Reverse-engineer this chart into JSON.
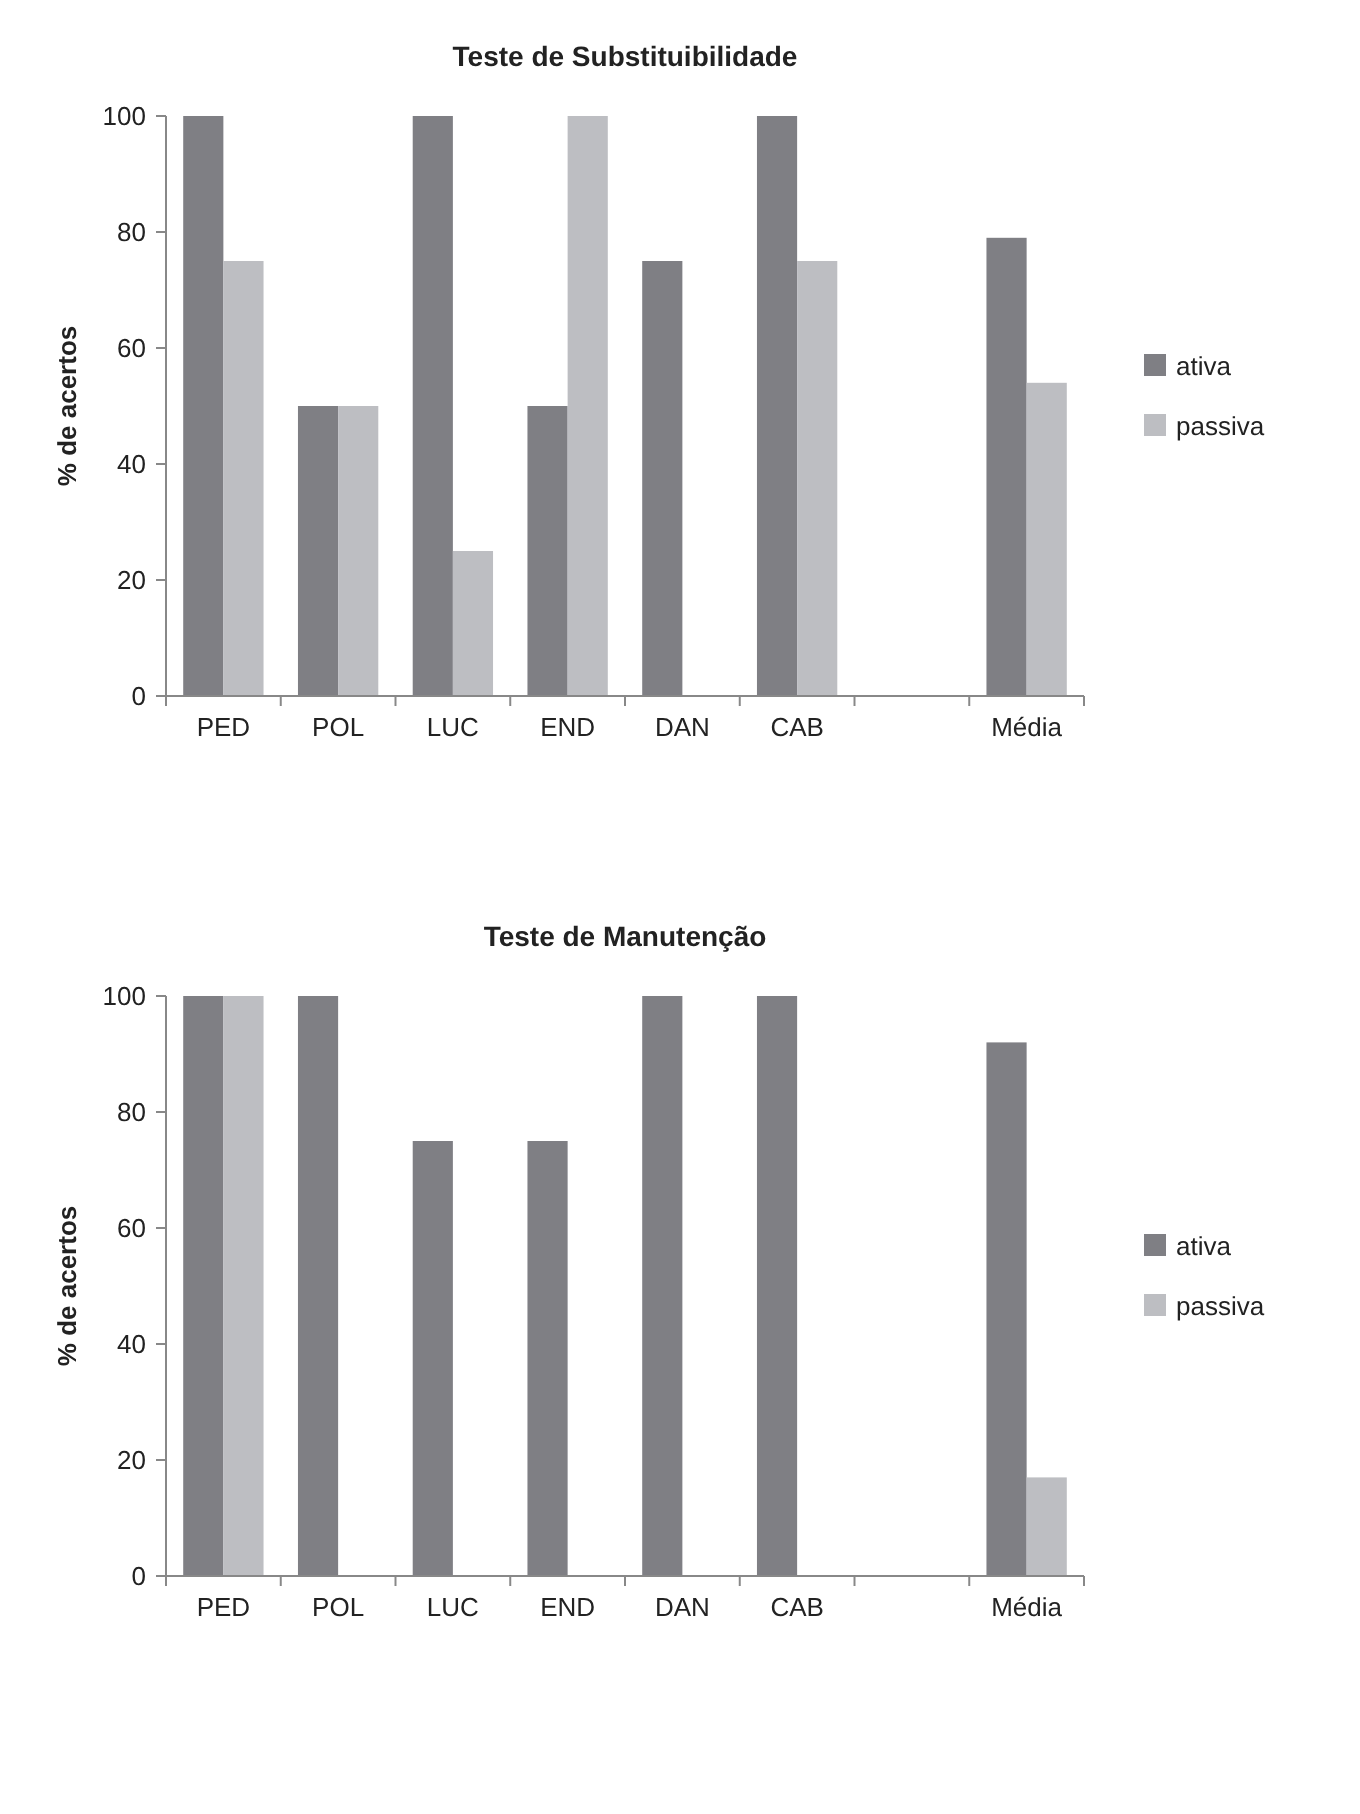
{
  "chart_data": [
    {
      "type": "bar",
      "title": "Teste de Substituibilidade",
      "ylabel": "% de acertos",
      "categories": [
        "PED",
        "POL",
        "LUC",
        "END",
        "DAN",
        "CAB",
        null,
        "Média"
      ],
      "series": [
        {
          "name": "ativa",
          "color": "#7f7f84",
          "values": [
            100,
            50,
            100,
            50,
            75,
            100,
            null,
            79
          ]
        },
        {
          "name": "passiva",
          "color": "#bdbec2",
          "values": [
            75,
            50,
            25,
            100,
            0,
            75,
            null,
            54
          ]
        }
      ],
      "ylim": [
        0,
        100
      ],
      "yticks": [
        0,
        20,
        40,
        60,
        80,
        100
      ],
      "grid": false,
      "legend": "right"
    },
    {
      "type": "bar",
      "title": "Teste de Manutenção",
      "ylabel": "% de acertos",
      "categories": [
        "PED",
        "POL",
        "LUC",
        "END",
        "DAN",
        "CAB",
        null,
        "Média"
      ],
      "series": [
        {
          "name": "ativa",
          "color": "#7f7f84",
          "values": [
            100,
            100,
            75,
            75,
            100,
            100,
            null,
            92
          ]
        },
        {
          "name": "passiva",
          "color": "#bdbec2",
          "values": [
            100,
            0,
            0,
            0,
            0,
            0,
            null,
            17
          ]
        }
      ],
      "ylim": [
        0,
        100
      ],
      "yticks": [
        0,
        20,
        40,
        60,
        80,
        100
      ],
      "grid": false,
      "legend": "right"
    }
  ]
}
